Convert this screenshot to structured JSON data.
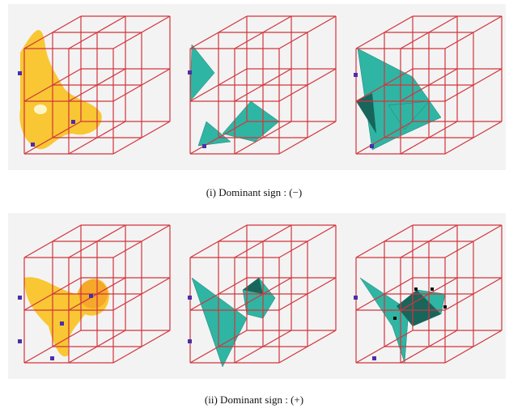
{
  "captions": [
    "(i) Dominant sign : (−)",
    "(ii) Dominant sign : (+)"
  ]
}
